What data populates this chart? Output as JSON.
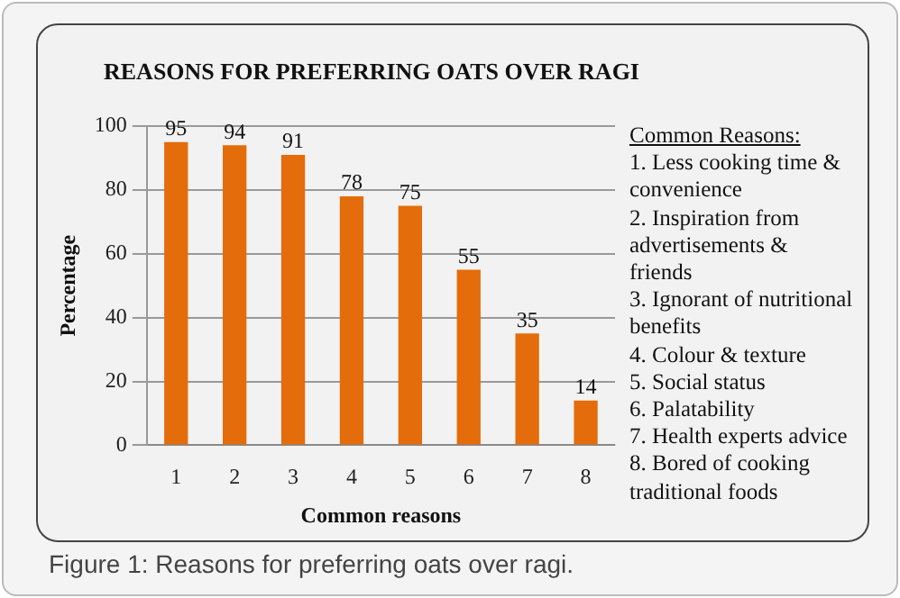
{
  "chart_data": {
    "type": "bar",
    "title": "REASONS FOR PREFERRING OATS OVER RAGI",
    "xlabel": "Common reasons",
    "ylabel": "Percentage",
    "categories": [
      "1",
      "2",
      "3",
      "4",
      "5",
      "6",
      "7",
      "8"
    ],
    "values": [
      95,
      94,
      91,
      78,
      75,
      55,
      35,
      14
    ],
    "color": "#e46c0a",
    "ylim": [
      0,
      100
    ],
    "yticks": [
      0,
      20,
      40,
      60,
      80,
      100
    ],
    "grid": "y",
    "data_labels": true,
    "annotations": [
      "Common Reasons:",
      "1. Less cooking time & convenience",
      "2. Inspiration from advertisements & friends",
      "3. Ignorant of nutritional benefits",
      "4. Colour & texture",
      "5. Social status",
      "6. Palatability",
      "7. Health experts advice",
      "8. Bored of cooking traditional foods",
      "Figure 1: Reasons for preferring oats over ragi."
    ]
  }
}
